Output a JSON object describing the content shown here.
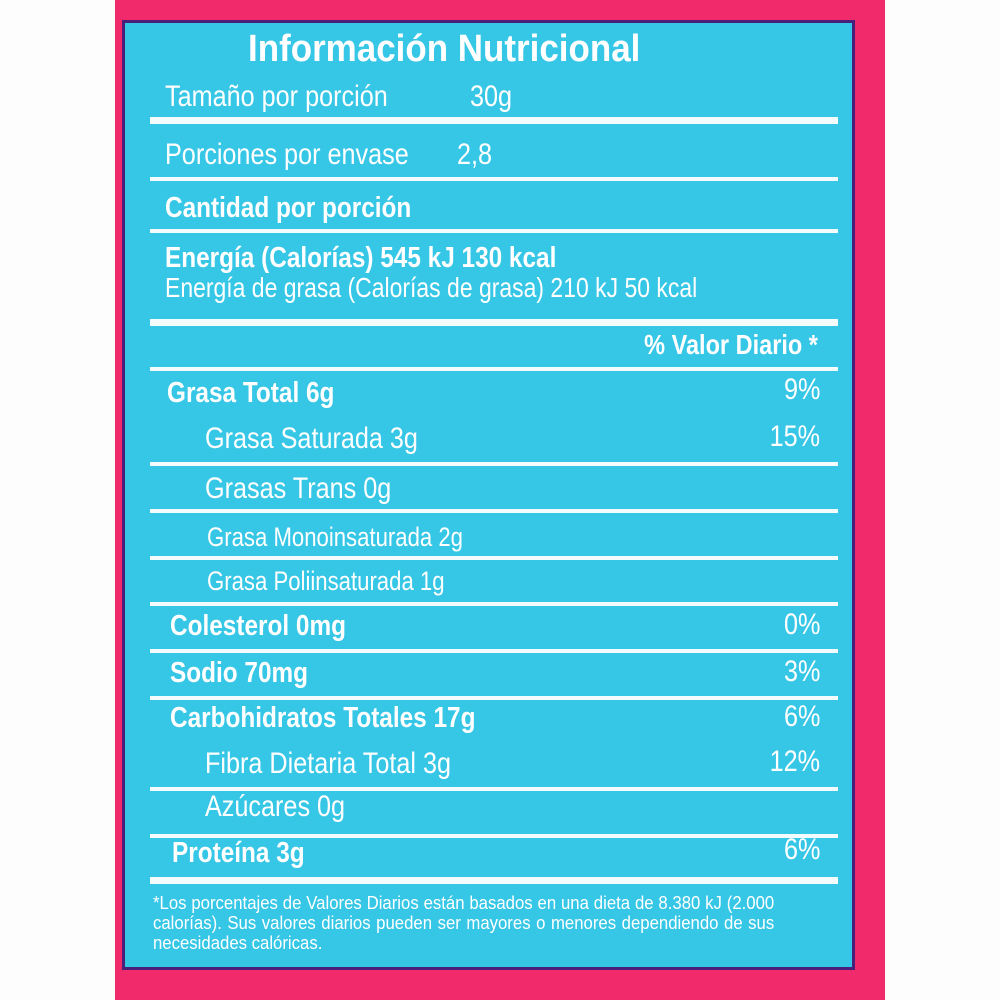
{
  "colors": {
    "background": "#f12a6b",
    "panel": "#36c6e6",
    "border": "#4a1f7a",
    "text": "#ffffff"
  },
  "title": "Información Nutricional",
  "serving_size": {
    "label": "Tamaño por porción",
    "value": "30g"
  },
  "servings": {
    "label": "Porciones por envase",
    "value": "2,8"
  },
  "amount_header": "Cantidad por porción",
  "energy": "Energía (Calorías) 545 kJ  130 kcal",
  "energy_fat": "Energía de grasa (Calorías de grasa) 210 kJ 50 kcal",
  "dv_header": "% Valor Diario *",
  "nutrients": [
    {
      "label": "Grasa Total 6g",
      "dv": "9%"
    },
    {
      "label": "Grasa Saturada 3g",
      "dv": "15%"
    },
    {
      "label": "Grasas Trans 0g",
      "dv": ""
    },
    {
      "label": "Grasa Monoinsaturada 2g",
      "dv": ""
    },
    {
      "label": "Grasa Poliinsaturada 1g",
      "dv": ""
    },
    {
      "label": "Colesterol 0mg",
      "dv": "0%"
    },
    {
      "label": "Sodio 70mg",
      "dv": "3%"
    },
    {
      "label": "Carbohidratos Totales 17g",
      "dv": "6%"
    },
    {
      "label": "Fibra Dietaria Total 3g",
      "dv": "12%"
    },
    {
      "label": "Azúcares 0g",
      "dv": ""
    },
    {
      "label": "Proteína 3g",
      "dv": "6%"
    }
  ],
  "footnote": "*Los porcentajes de Valores Diarios están basados en una dieta de 8.380 kJ (2.000 calorías). Sus valores diarios pueden ser mayores o menores dependiendo de sus necesidades calóricas."
}
